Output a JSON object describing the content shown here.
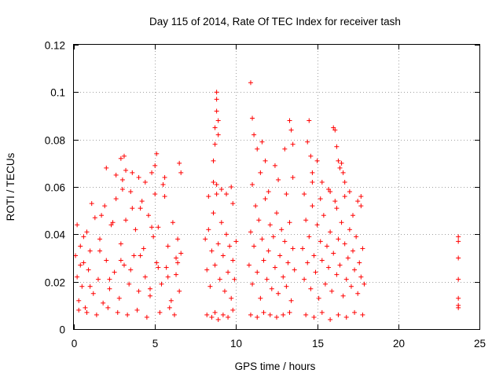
{
  "chart_data": {
    "type": "scatter",
    "title": "Day 115 of 2014, Rate Of TEC Index for receiver tash",
    "xlabel": "GPS time / hours",
    "ylabel": "ROTI / TECUs",
    "xlim": [
      0,
      25
    ],
    "ylim": [
      0,
      0.12
    ],
    "x_ticks": [
      0,
      5,
      10,
      15,
      20,
      25
    ],
    "x_tick_labels": [
      "0",
      "5",
      "10",
      "15",
      "20",
      "25"
    ],
    "y_ticks": [
      0,
      0.02,
      0.04,
      0.06,
      0.08,
      0.1,
      0.12
    ],
    "y_tick_labels": [
      "0",
      "0.02",
      "0.04",
      "0.06",
      "0.08",
      "0.1",
      "0.12"
    ],
    "grid": true,
    "marker": "plus",
    "colors": {
      "points": "#ff0000",
      "grid": "#a0a0a0",
      "frame": "#000000"
    },
    "series": [
      {
        "x": [
          0.1,
          0.2,
          0.3,
          0.4,
          0.5,
          0.6,
          0.7,
          0.8,
          0.9,
          1.0,
          1.2,
          1.3,
          1.5,
          1.6,
          1.8,
          1.9,
          2.0,
          2.2,
          2.3,
          2.5,
          2.6,
          2.8,
          2.9,
          3.0,
          3.1,
          3.2,
          3.4,
          3.5,
          3.7,
          3.8,
          4.0,
          4.1,
          4.3,
          4.4,
          4.6,
          4.7,
          4.9,
          5.0,
          5.1,
          5.2,
          5.4,
          5.5,
          5.7,
          5.8,
          6.0,
          6.1,
          6.3,
          6.4,
          6.5,
          6.6,
          0.3,
          0.8,
          1.4,
          2.1,
          2.7,
          3.3,
          3.9,
          4.5,
          5.3,
          5.9,
          6.2,
          0.2,
          0.6,
          1.1,
          1.7,
          2.4,
          3.0,
          3.6,
          4.2,
          4.8,
          5.6,
          6.4,
          2.0,
          2.6,
          2.9,
          3.1,
          3.2,
          3.6,
          4.0,
          4.4,
          4.8,
          5.0,
          5.1,
          5.5,
          5.6,
          6.5,
          6.6,
          0.4,
          1.0,
          1.6,
          2.2,
          2.9,
          3.5,
          4.1,
          4.7,
          5.2,
          5.8,
          6.3,
          8.1,
          8.2,
          8.3,
          8.4,
          8.5,
          8.6,
          8.7,
          8.8,
          8.9,
          9.0,
          9.1,
          9.2,
          9.3,
          9.4,
          9.5,
          9.6,
          9.7,
          9.8,
          9.9,
          10.0,
          8.2,
          8.5,
          8.7,
          8.9,
          9.2,
          9.5,
          9.8,
          8.3,
          8.6,
          8.8,
          9.1,
          9.4,
          9.7,
          8.6,
          8.7,
          8.7,
          8.8,
          8.8,
          8.8,
          8.9,
          8.9,
          9.8,
          10.8,
          10.9,
          11.0,
          11.1,
          11.2,
          11.3,
          11.4,
          11.5,
          11.6,
          11.7,
          11.8,
          11.9,
          12.0,
          12.1,
          12.2,
          12.3,
          12.4,
          12.5,
          12.6,
          12.7,
          12.8,
          12.9,
          13.0,
          13.1,
          13.2,
          13.3,
          13.4,
          13.5,
          13.6,
          10.9,
          11.3,
          11.7,
          12.1,
          12.5,
          12.9,
          13.3,
          11.0,
          11.5,
          12.0,
          12.6,
          13.1,
          13.5,
          10.9,
          11.0,
          11.1,
          11.3,
          11.6,
          11.8,
          12.4,
          13.0,
          13.3,
          13.4,
          13.5,
          14.1,
          14.2,
          14.3,
          14.4,
          14.5,
          14.6,
          14.7,
          14.8,
          14.9,
          15.0,
          15.1,
          15.2,
          15.3,
          15.4,
          15.5,
          15.6,
          15.7,
          15.8,
          15.9,
          16.0,
          16.1,
          16.2,
          16.3,
          16.4,
          16.5,
          16.6,
          16.7,
          16.8,
          16.9,
          17.0,
          17.1,
          17.2,
          17.3,
          17.4,
          17.5,
          17.6,
          17.7,
          17.8,
          17.9,
          14.3,
          14.8,
          15.3,
          15.8,
          16.3,
          16.8,
          17.3,
          17.8,
          14.2,
          14.7,
          15.2,
          15.7,
          16.2,
          16.7,
          17.2,
          17.7,
          14.4,
          14.5,
          14.6,
          14.7,
          15.0,
          15.3,
          15.8,
          16.0,
          16.1,
          16.2,
          16.3,
          16.4,
          16.5,
          16.6,
          16.7,
          17.0,
          17.5,
          17.7,
          23.7,
          23.7,
          23.7,
          23.7,
          23.7,
          23.7,
          23.7
        ],
        "y": [
          0.031,
          0.022,
          0.012,
          0.035,
          0.018,
          0.028,
          0.009,
          0.041,
          0.025,
          0.033,
          0.015,
          0.047,
          0.021,
          0.038,
          0.011,
          0.052,
          0.029,
          0.017,
          0.044,
          0.024,
          0.055,
          0.013,
          0.036,
          0.063,
          0.027,
          0.046,
          0.019,
          0.058,
          0.031,
          0.042,
          0.016,
          0.051,
          0.034,
          0.022,
          0.048,
          0.014,
          0.039,
          0.057,
          0.028,
          0.043,
          0.019,
          0.061,
          0.026,
          0.035,
          0.012,
          0.045,
          0.023,
          0.038,
          0.016,
          0.032,
          0.008,
          0.007,
          0.006,
          0.009,
          0.007,
          0.006,
          0.008,
          0.005,
          0.007,
          0.009,
          0.006,
          0.044,
          0.039,
          0.053,
          0.048,
          0.045,
          0.059,
          0.051,
          0.054,
          0.043,
          0.056,
          0.028,
          0.068,
          0.065,
          0.072,
          0.073,
          0.067,
          0.066,
          0.064,
          0.062,
          0.066,
          0.069,
          0.074,
          0.061,
          0.064,
          0.07,
          0.066,
          0.027,
          0.018,
          0.033,
          0.021,
          0.029,
          0.025,
          0.031,
          0.017,
          0.026,
          0.022,
          0.03,
          0.038,
          0.025,
          0.042,
          0.018,
          0.033,
          0.049,
          0.027,
          0.057,
          0.036,
          0.021,
          0.045,
          0.031,
          0.016,
          0.04,
          0.024,
          0.035,
          0.013,
          0.029,
          0.021,
          0.037,
          0.006,
          0.005,
          0.007,
          0.004,
          0.006,
          0.005,
          0.008,
          0.056,
          0.062,
          0.061,
          0.059,
          0.057,
          0.06,
          0.071,
          0.078,
          0.085,
          0.092,
          0.097,
          0.1,
          0.088,
          0.082,
          0.053,
          0.027,
          0.041,
          0.019,
          0.035,
          0.052,
          0.024,
          0.046,
          0.013,
          0.038,
          0.029,
          0.055,
          0.021,
          0.033,
          0.044,
          0.017,
          0.039,
          0.026,
          0.049,
          0.015,
          0.031,
          0.042,
          0.022,
          0.037,
          0.018,
          0.028,
          0.045,
          0.012,
          0.034,
          0.025,
          0.006,
          0.005,
          0.007,
          0.006,
          0.005,
          0.006,
          0.007,
          0.061,
          0.066,
          0.058,
          0.063,
          0.057,
          0.064,
          0.104,
          0.089,
          0.082,
          0.076,
          0.079,
          0.071,
          0.069,
          0.076,
          0.088,
          0.084,
          0.078,
          0.034,
          0.021,
          0.046,
          0.028,
          0.039,
          0.017,
          0.052,
          0.031,
          0.024,
          0.044,
          0.013,
          0.037,
          0.029,
          0.048,
          0.019,
          0.035,
          0.026,
          0.041,
          0.016,
          0.032,
          0.054,
          0.023,
          0.038,
          0.027,
          0.045,
          0.014,
          0.036,
          0.021,
          0.03,
          0.042,
          0.018,
          0.033,
          0.025,
          0.039,
          0.015,
          0.028,
          0.022,
          0.034,
          0.019,
          0.006,
          0.005,
          0.007,
          0.004,
          0.006,
          0.005,
          0.007,
          0.006,
          0.057,
          0.062,
          0.055,
          0.059,
          0.051,
          0.056,
          0.048,
          0.052,
          0.079,
          0.088,
          0.073,
          0.066,
          0.071,
          0.062,
          0.058,
          0.085,
          0.084,
          0.077,
          0.071,
          0.068,
          0.07,
          0.066,
          0.062,
          0.058,
          0.054,
          0.056,
          0.039,
          0.037,
          0.03,
          0.021,
          0.013,
          0.01,
          0.009
        ]
      }
    ]
  }
}
